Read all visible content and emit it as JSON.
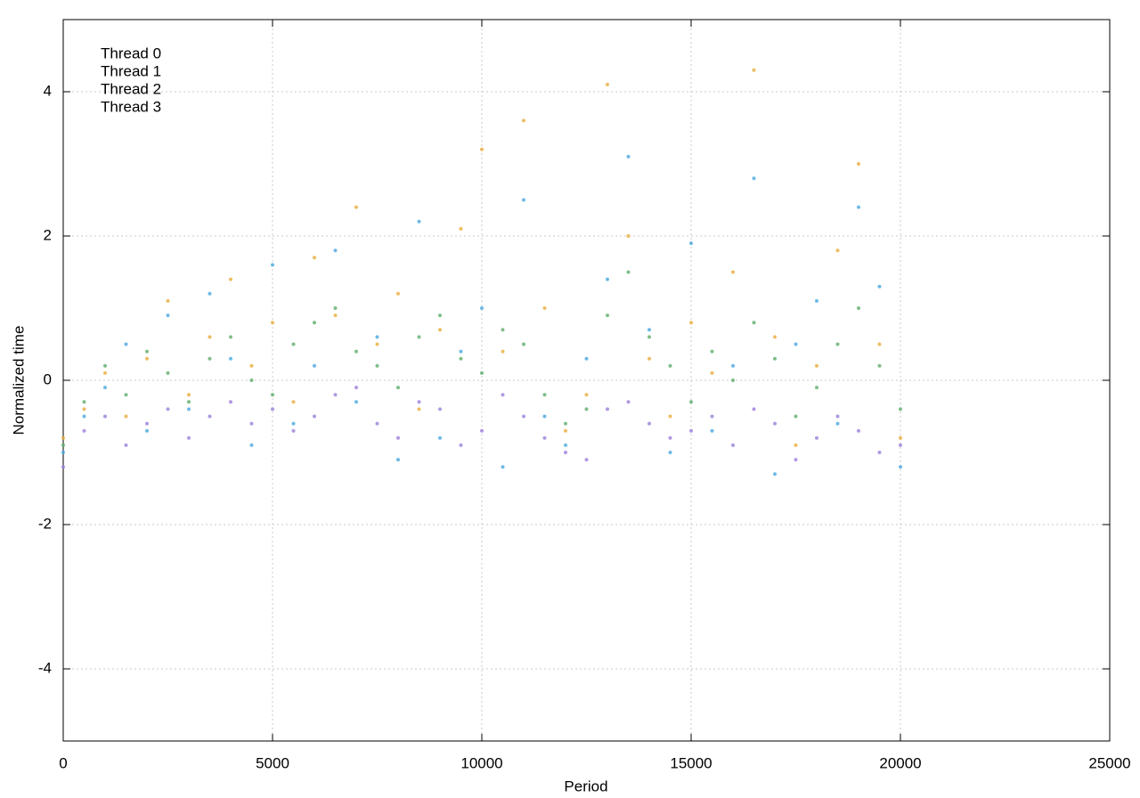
{
  "chart_data": {
    "type": "scatter",
    "x_label": "Period",
    "y_label": "Normalized time",
    "x": [
      0,
      500,
      1000,
      1500,
      2000,
      2500,
      3000,
      3500,
      4000,
      4500,
      5000,
      5500,
      6000,
      6500,
      7000,
      7500,
      8000,
      8500,
      9000,
      9500,
      10000,
      10500,
      11000,
      11500,
      12000,
      12500,
      13000,
      13500,
      14000,
      14500,
      15000,
      15500,
      16000,
      16500,
      17000,
      17500,
      18000,
      18500,
      19000,
      19500,
      20000
    ],
    "series": [
      {
        "name": "Thread 0",
        "color": "#9b7fd9",
        "values": [
          -1.2,
          -0.7,
          -0.5,
          -0.9,
          -0.6,
          -0.4,
          -0.8,
          -0.5,
          -0.3,
          -0.6,
          -0.4,
          -0.7,
          -0.5,
          -0.2,
          -0.1,
          -0.6,
          -0.8,
          -0.3,
          -0.4,
          -0.9,
          -0.7,
          -0.2,
          -0.5,
          -0.8,
          -1.0,
          -1.1,
          -0.4,
          -0.3,
          -0.6,
          -0.8,
          -0.7,
          -0.5,
          -0.9,
          -0.4,
          -0.6,
          -1.1,
          -0.8,
          -0.5,
          -0.7,
          -1.0,
          -0.9
        ]
      },
      {
        "name": "Thread 1",
        "color": "#5fae6a",
        "values": [
          -0.9,
          -0.3,
          0.2,
          -0.2,
          0.4,
          0.1,
          -0.3,
          0.3,
          0.6,
          0.0,
          -0.2,
          0.5,
          0.8,
          1.0,
          0.4,
          0.2,
          -0.1,
          0.6,
          0.9,
          0.3,
          0.1,
          0.7,
          0.5,
          -0.2,
          -0.6,
          -0.4,
          0.9,
          1.5,
          0.6,
          0.2,
          -0.3,
          0.4,
          0.0,
          0.8,
          0.3,
          -0.5,
          -0.1,
          0.5,
          1.0,
          0.2,
          -0.4
        ]
      },
      {
        "name": "Thread 2",
        "color": "#4aa8e0",
        "values": [
          -1.0,
          -0.5,
          -0.1,
          0.5,
          -0.7,
          0.9,
          -0.4,
          1.2,
          0.3,
          -0.9,
          1.6,
          -0.6,
          0.2,
          1.8,
          -0.3,
          0.6,
          -1.1,
          2.2,
          -0.8,
          0.4,
          1.0,
          -1.2,
          2.5,
          -0.5,
          -0.9,
          0.3,
          1.4,
          3.1,
          0.7,
          -1.0,
          1.9,
          -0.7,
          0.2,
          2.8,
          -1.3,
          0.5,
          1.1,
          -0.6,
          2.4,
          1.3,
          -1.2
        ]
      },
      {
        "name": "Thread 3",
        "color": "#e8ac3c",
        "values": [
          -0.8,
          -0.4,
          0.1,
          -0.5,
          0.3,
          1.1,
          -0.2,
          0.6,
          1.4,
          0.2,
          0.8,
          -0.3,
          1.7,
          0.9,
          2.4,
          0.5,
          1.2,
          -0.4,
          0.7,
          2.1,
          3.2,
          0.4,
          3.6,
          1.0,
          -0.7,
          -0.2,
          4.1,
          2.0,
          0.3,
          -0.5,
          0.8,
          0.1,
          1.5,
          4.3,
          0.6,
          -0.9,
          0.2,
          1.8,
          3.0,
          0.5,
          -0.8
        ]
      }
    ],
    "xlim": [
      0,
      25000
    ],
    "xticks": [
      0,
      5000,
      10000,
      15000,
      20000,
      25000
    ],
    "ylim": [
      -5,
      5
    ],
    "yticks": [
      -4,
      -2,
      0,
      2,
      4
    ],
    "grid": true,
    "legend": "upper-left"
  }
}
